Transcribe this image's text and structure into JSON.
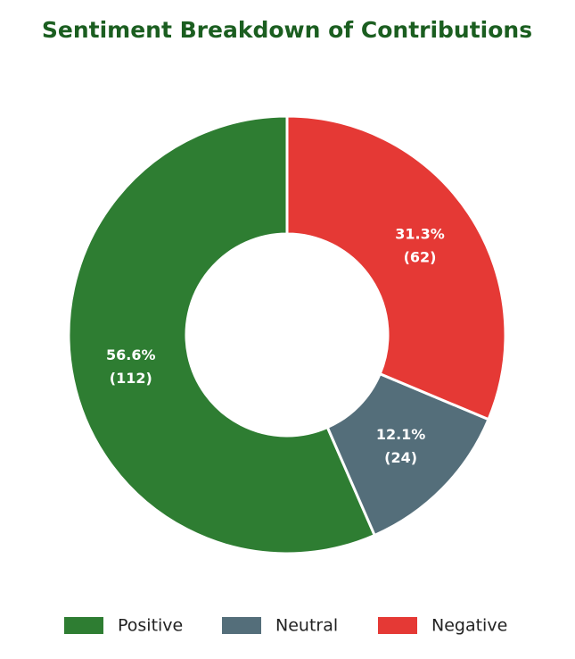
{
  "chart_data": {
    "type": "donut",
    "title": "Sentiment Breakdown of Contributions",
    "categories": [
      "Positive",
      "Neutral",
      "Negative"
    ],
    "values": [
      112,
      24,
      62
    ],
    "value_labels": [
      "(112)",
      "(24)",
      "(62)"
    ],
    "percent_labels": [
      "56.6%",
      "12.1%",
      "31.3%"
    ],
    "colors": [
      "#2e7d32",
      "#546e7a",
      "#e53935"
    ],
    "legend": "bottom"
  }
}
